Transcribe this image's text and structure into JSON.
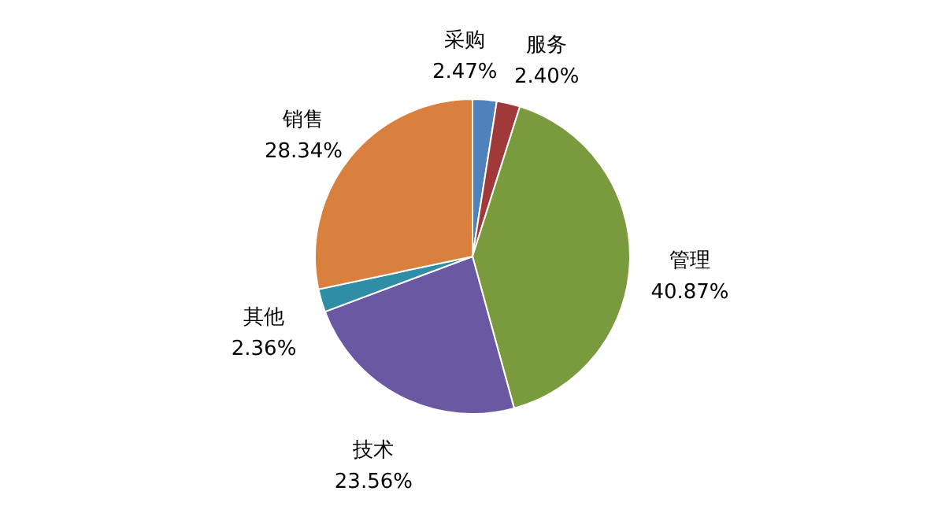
{
  "chart_data": {
    "type": "pie",
    "categories": [
      "采购",
      "服务",
      "管理",
      "技术",
      "其他",
      "销售"
    ],
    "values": [
      2.47,
      2.4,
      40.87,
      23.56,
      2.36,
      28.34
    ],
    "colors": [
      "#4f81bd",
      "#a0393a",
      "#7a9a3e",
      "#6a58a3",
      "#2f8ea5",
      "#d9803f"
    ],
    "value_labels": [
      "2.47%",
      "2.40%",
      "40.87%",
      "23.56%",
      "2.36%",
      "28.34%"
    ],
    "legend": false
  }
}
